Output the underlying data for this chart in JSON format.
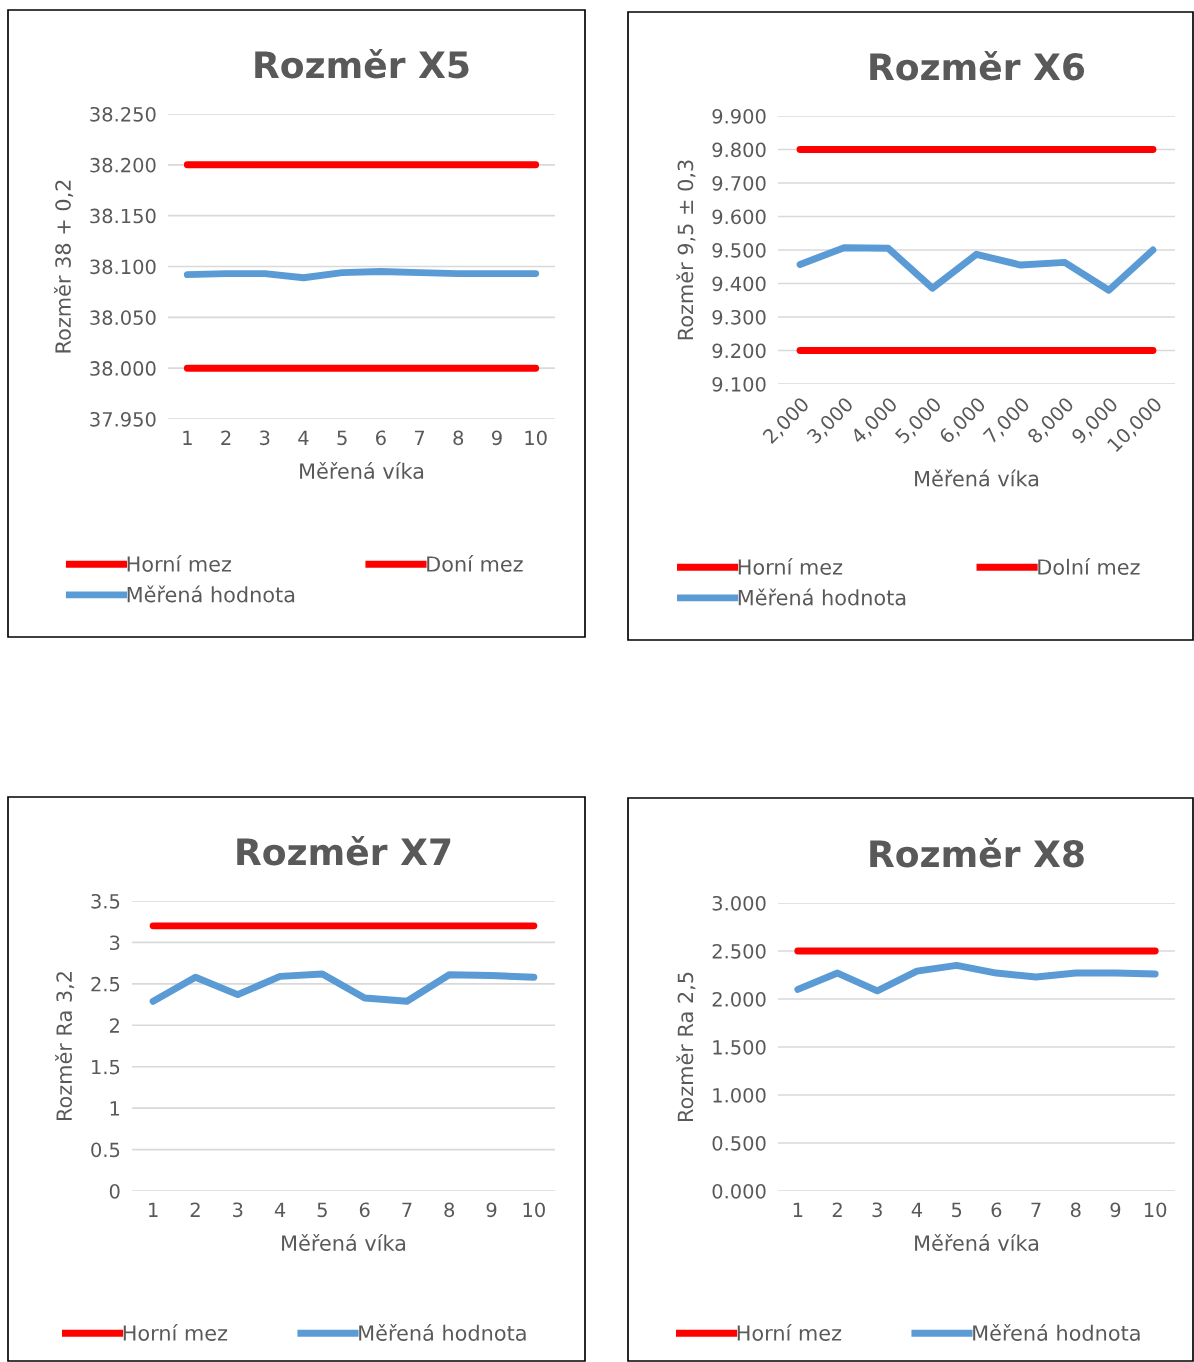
{
  "chart_data": [
    {
      "type": "line",
      "title": "Rozměr X5",
      "xlabel": "Měřená víka",
      "ylabel": "Rozměr 38 + 0,2",
      "categories": [
        "1",
        "2",
        "3",
        "4",
        "5",
        "6",
        "7",
        "8",
        "9",
        "10"
      ],
      "series": [
        {
          "name": "Horní mez",
          "color": "#ff0000",
          "values": [
            38.2,
            38.2,
            38.2,
            38.2,
            38.2,
            38.2,
            38.2,
            38.2,
            38.2,
            38.2
          ]
        },
        {
          "name": "Měřená hodnota",
          "color": "#5b9bd5",
          "values": [
            38.092,
            38.093,
            38.093,
            38.089,
            38.094,
            38.095,
            38.094,
            38.093,
            38.093,
            38.093
          ]
        },
        {
          "name": "Doní mez",
          "color": "#ff0000",
          "values": [
            38.0,
            38.0,
            38.0,
            38.0,
            38.0,
            38.0,
            38.0,
            38.0,
            38.0,
            38.0
          ]
        }
      ],
      "ylim": [
        37.95,
        38.25
      ],
      "yticks": [
        {
          "value": 37.95,
          "label": "37.950"
        },
        {
          "value": 38.0,
          "label": "38.000"
        },
        {
          "value": 38.05,
          "label": "38.050"
        },
        {
          "value": 38.1,
          "label": "38.100"
        },
        {
          "value": 38.15,
          "label": "38.150"
        },
        {
          "value": 38.2,
          "label": "38.200"
        },
        {
          "value": 38.25,
          "label": "38.250"
        }
      ],
      "grid": "y",
      "legend": "bottom",
      "marker": "none",
      "line_style": "solid"
    },
    {
      "type": "line",
      "title": "Rozměr X6",
      "xlabel": "Měřená víka",
      "ylabel": "Rozměr 9,5 ± 0,3",
      "categories": [
        "2,000",
        "3,000",
        "4,000",
        "5,000",
        "6,000",
        "7,000",
        "8,000",
        "9,000",
        "10,000"
      ],
      "series": [
        {
          "name": "Horní mez",
          "color": "#ff0000",
          "values": [
            9.8,
            9.8,
            9.8,
            9.8,
            9.8,
            9.8,
            9.8,
            9.8,
            9.8
          ]
        },
        {
          "name": "Měřená hodnota",
          "color": "#5b9bd5",
          "values": [
            9.457,
            9.507,
            9.505,
            9.386,
            9.487,
            9.455,
            9.463,
            9.38,
            9.5
          ]
        },
        {
          "name": "Dolní mez",
          "color": "#ff0000",
          "values": [
            9.2,
            9.2,
            9.2,
            9.2,
            9.2,
            9.2,
            9.2,
            9.2,
            9.2
          ]
        }
      ],
      "ylim": [
        9.1,
        9.9
      ],
      "yticks": [
        {
          "value": 9.1,
          "label": "9.100"
        },
        {
          "value": 9.2,
          "label": "9.200"
        },
        {
          "value": 9.3,
          "label": "9.300"
        },
        {
          "value": 9.4,
          "label": "9.400"
        },
        {
          "value": 9.5,
          "label": "9.500"
        },
        {
          "value": 9.6,
          "label": "9.600"
        },
        {
          "value": 9.7,
          "label": "9.700"
        },
        {
          "value": 9.8,
          "label": "9.800"
        },
        {
          "value": 9.9,
          "label": "9.900"
        }
      ],
      "grid": "y",
      "legend": "bottom",
      "marker": "none",
      "line_style": "solid"
    },
    {
      "type": "line",
      "title": "Rozměr X7",
      "xlabel": "Měřená víka",
      "ylabel": "Rozměr Ra 3,2",
      "categories": [
        "1",
        "2",
        "3",
        "4",
        "5",
        "6",
        "7",
        "8",
        "9",
        "10"
      ],
      "series": [
        {
          "name": "Horní mez",
          "color": "#ff0000",
          "values": [
            3.2,
            3.2,
            3.2,
            3.2,
            3.2,
            3.2,
            3.2,
            3.2,
            3.2,
            3.2
          ]
        },
        {
          "name": "Měřená hodnota",
          "color": "#5b9bd5",
          "values": [
            2.29,
            2.58,
            2.37,
            2.59,
            2.62,
            2.33,
            2.29,
            2.61,
            2.6,
            2.58
          ]
        }
      ],
      "ylim": [
        0,
        3.5
      ],
      "yticks": [
        0,
        0.5,
        1,
        1.5,
        2,
        2.5,
        3,
        3.5
      ],
      "grid": "y",
      "legend": "bottom",
      "marker": "none",
      "line_style": "solid"
    },
    {
      "type": "line",
      "title": "Rozměr X8",
      "xlabel": "Měřená víka",
      "ylabel": "Rozměr Ra 2,5",
      "categories": [
        "1",
        "2",
        "3",
        "4",
        "5",
        "6",
        "7",
        "8",
        "9",
        "10"
      ],
      "series": [
        {
          "name": "Horní mez",
          "color": "#ff0000",
          "values": [
            2.5,
            2.5,
            2.5,
            2.5,
            2.5,
            2.5,
            2.5,
            2.5,
            2.5,
            2.5
          ]
        },
        {
          "name": "Měřená hodnota",
          "color": "#5b9bd5",
          "values": [
            2.1,
            2.27,
            2.085,
            2.29,
            2.35,
            2.27,
            2.23,
            2.27,
            2.27,
            2.26
          ]
        }
      ],
      "ylim": [
        0,
        3
      ],
      "yticks": [
        {
          "value": 0,
          "label": "0.000"
        },
        {
          "value": 0.5,
          "label": "0.500"
        },
        {
          "value": 1,
          "label": "1.000"
        },
        {
          "value": 1.5,
          "label": "1.500"
        },
        {
          "value": 2,
          "label": "2.000"
        },
        {
          "value": 2.5,
          "label": "2.500"
        },
        {
          "value": 3,
          "label": "3.000"
        }
      ],
      "grid": "y",
      "legend": "bottom",
      "marker": "none",
      "line_style": "solid"
    }
  ]
}
